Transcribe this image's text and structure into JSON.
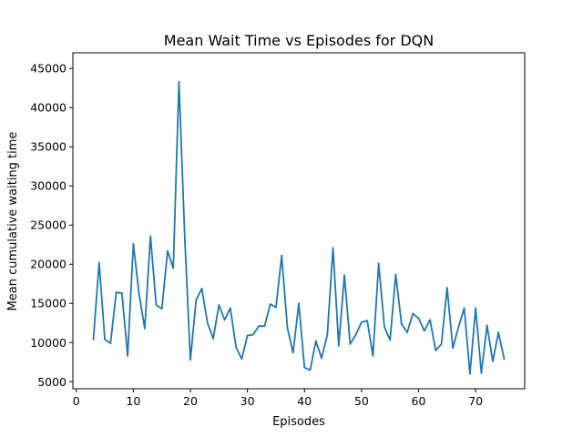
{
  "chart_data": {
    "type": "line",
    "title": "Mean Wait Time vs Episodes for DQN",
    "xlabel": "Episodes",
    "ylabel": "Mean cumulative waiting time",
    "xlim": [
      -0.6,
      78.6
    ],
    "ylim": [
      4100,
      47000
    ],
    "xticks": [
      0,
      10,
      20,
      30,
      40,
      50,
      60,
      70
    ],
    "yticks": [
      5000,
      10000,
      15000,
      20000,
      25000,
      30000,
      35000,
      40000,
      45000
    ],
    "grid": false,
    "series": [
      {
        "color": "#1f77b4",
        "x": [
          3,
          4,
          5,
          6,
          7,
          8,
          9,
          10,
          11,
          12,
          13,
          14,
          15,
          16,
          17,
          18,
          19,
          20,
          21,
          22,
          23,
          24,
          25,
          26,
          27,
          28,
          29,
          30,
          31,
          32,
          33,
          34,
          35,
          36,
          37,
          38,
          39,
          40,
          41,
          42,
          43,
          44,
          45,
          46,
          47,
          48,
          49,
          50,
          51,
          52,
          53,
          54,
          55,
          56,
          57,
          58,
          59,
          60,
          61,
          62,
          63,
          64,
          65,
          66,
          67,
          68,
          69,
          70,
          71,
          72,
          73,
          74,
          75
        ],
        "y": [
          10400,
          20200,
          10400,
          9900,
          16400,
          16300,
          8300,
          22600,
          16200,
          11800,
          23600,
          14800,
          14300,
          21700,
          19500,
          43300,
          23600,
          7800,
          15400,
          16900,
          12500,
          10500,
          14800,
          12900,
          14400,
          9400,
          7900,
          10900,
          11000,
          12100,
          12100,
          14900,
          14500,
          21100,
          11900,
          8700,
          15000,
          6800,
          6500,
          10200,
          8000,
          11000,
          22100,
          9600,
          18600,
          9800,
          11000,
          12600,
          12800,
          8300,
          20100,
          12000,
          10300,
          18700,
          12400,
          11300,
          13700,
          13100,
          11500,
          12900,
          9000,
          9800,
          17000,
          9300,
          12000,
          14400,
          6000,
          14400,
          6100,
          12200,
          7600,
          11300,
          7900
        ]
      }
    ]
  }
}
